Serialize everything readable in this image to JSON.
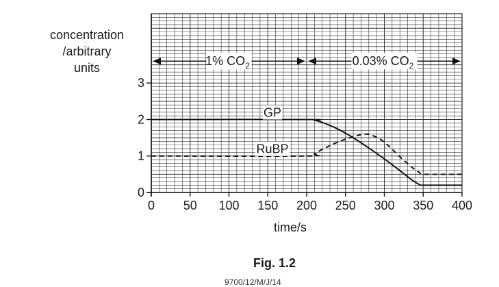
{
  "chart_data": {
    "type": "line",
    "ylabel_lines": [
      "concentration",
      "/arbitrary",
      "units"
    ],
    "xlabel": "time/s",
    "xlim": [
      0,
      400
    ],
    "ylim": [
      0,
      4.9
    ],
    "x_ticks": [
      "0",
      "50",
      "100",
      "150",
      "200",
      "250",
      "300",
      "350",
      "400"
    ],
    "y_ticks": [
      "0",
      "1",
      "2",
      "3"
    ],
    "grid": true,
    "series": [
      {
        "name": "GP",
        "style": "solid",
        "points": [
          [
            0,
            2
          ],
          [
            200,
            2
          ],
          [
            210,
            1.98
          ],
          [
            220,
            1.92
          ],
          [
            240,
            1.74
          ],
          [
            260,
            1.5
          ],
          [
            280,
            1.22
          ],
          [
            300,
            0.92
          ],
          [
            320,
            0.6
          ],
          [
            335,
            0.35
          ],
          [
            345,
            0.22
          ],
          [
            350,
            0.2
          ],
          [
            400,
            0.2
          ]
        ]
      },
      {
        "name": "RuBP",
        "style": "dashed",
        "points": [
          [
            0,
            1
          ],
          [
            200,
            1
          ],
          [
            210,
            1.06
          ],
          [
            220,
            1.18
          ],
          [
            240,
            1.38
          ],
          [
            260,
            1.53
          ],
          [
            275,
            1.6
          ],
          [
            285,
            1.56
          ],
          [
            300,
            1.38
          ],
          [
            320,
            0.98
          ],
          [
            335,
            0.7
          ],
          [
            345,
            0.55
          ],
          [
            352,
            0.5
          ],
          [
            400,
            0.5
          ]
        ]
      }
    ],
    "annotations": [
      {
        "text": "1% CO",
        "sub": "2",
        "x_range": [
          0,
          200
        ]
      },
      {
        "text": "0.03% CO",
        "sub": "2",
        "x_range": [
          200,
          400
        ]
      }
    ],
    "series_labels": [
      {
        "text": "GP",
        "at": [
          200,
          2
        ]
      },
      {
        "text": "RuBP",
        "at": [
          200,
          1
        ]
      }
    ]
  },
  "caption": "Fig. 1.2",
  "footer": "9700/12/M/J/14"
}
